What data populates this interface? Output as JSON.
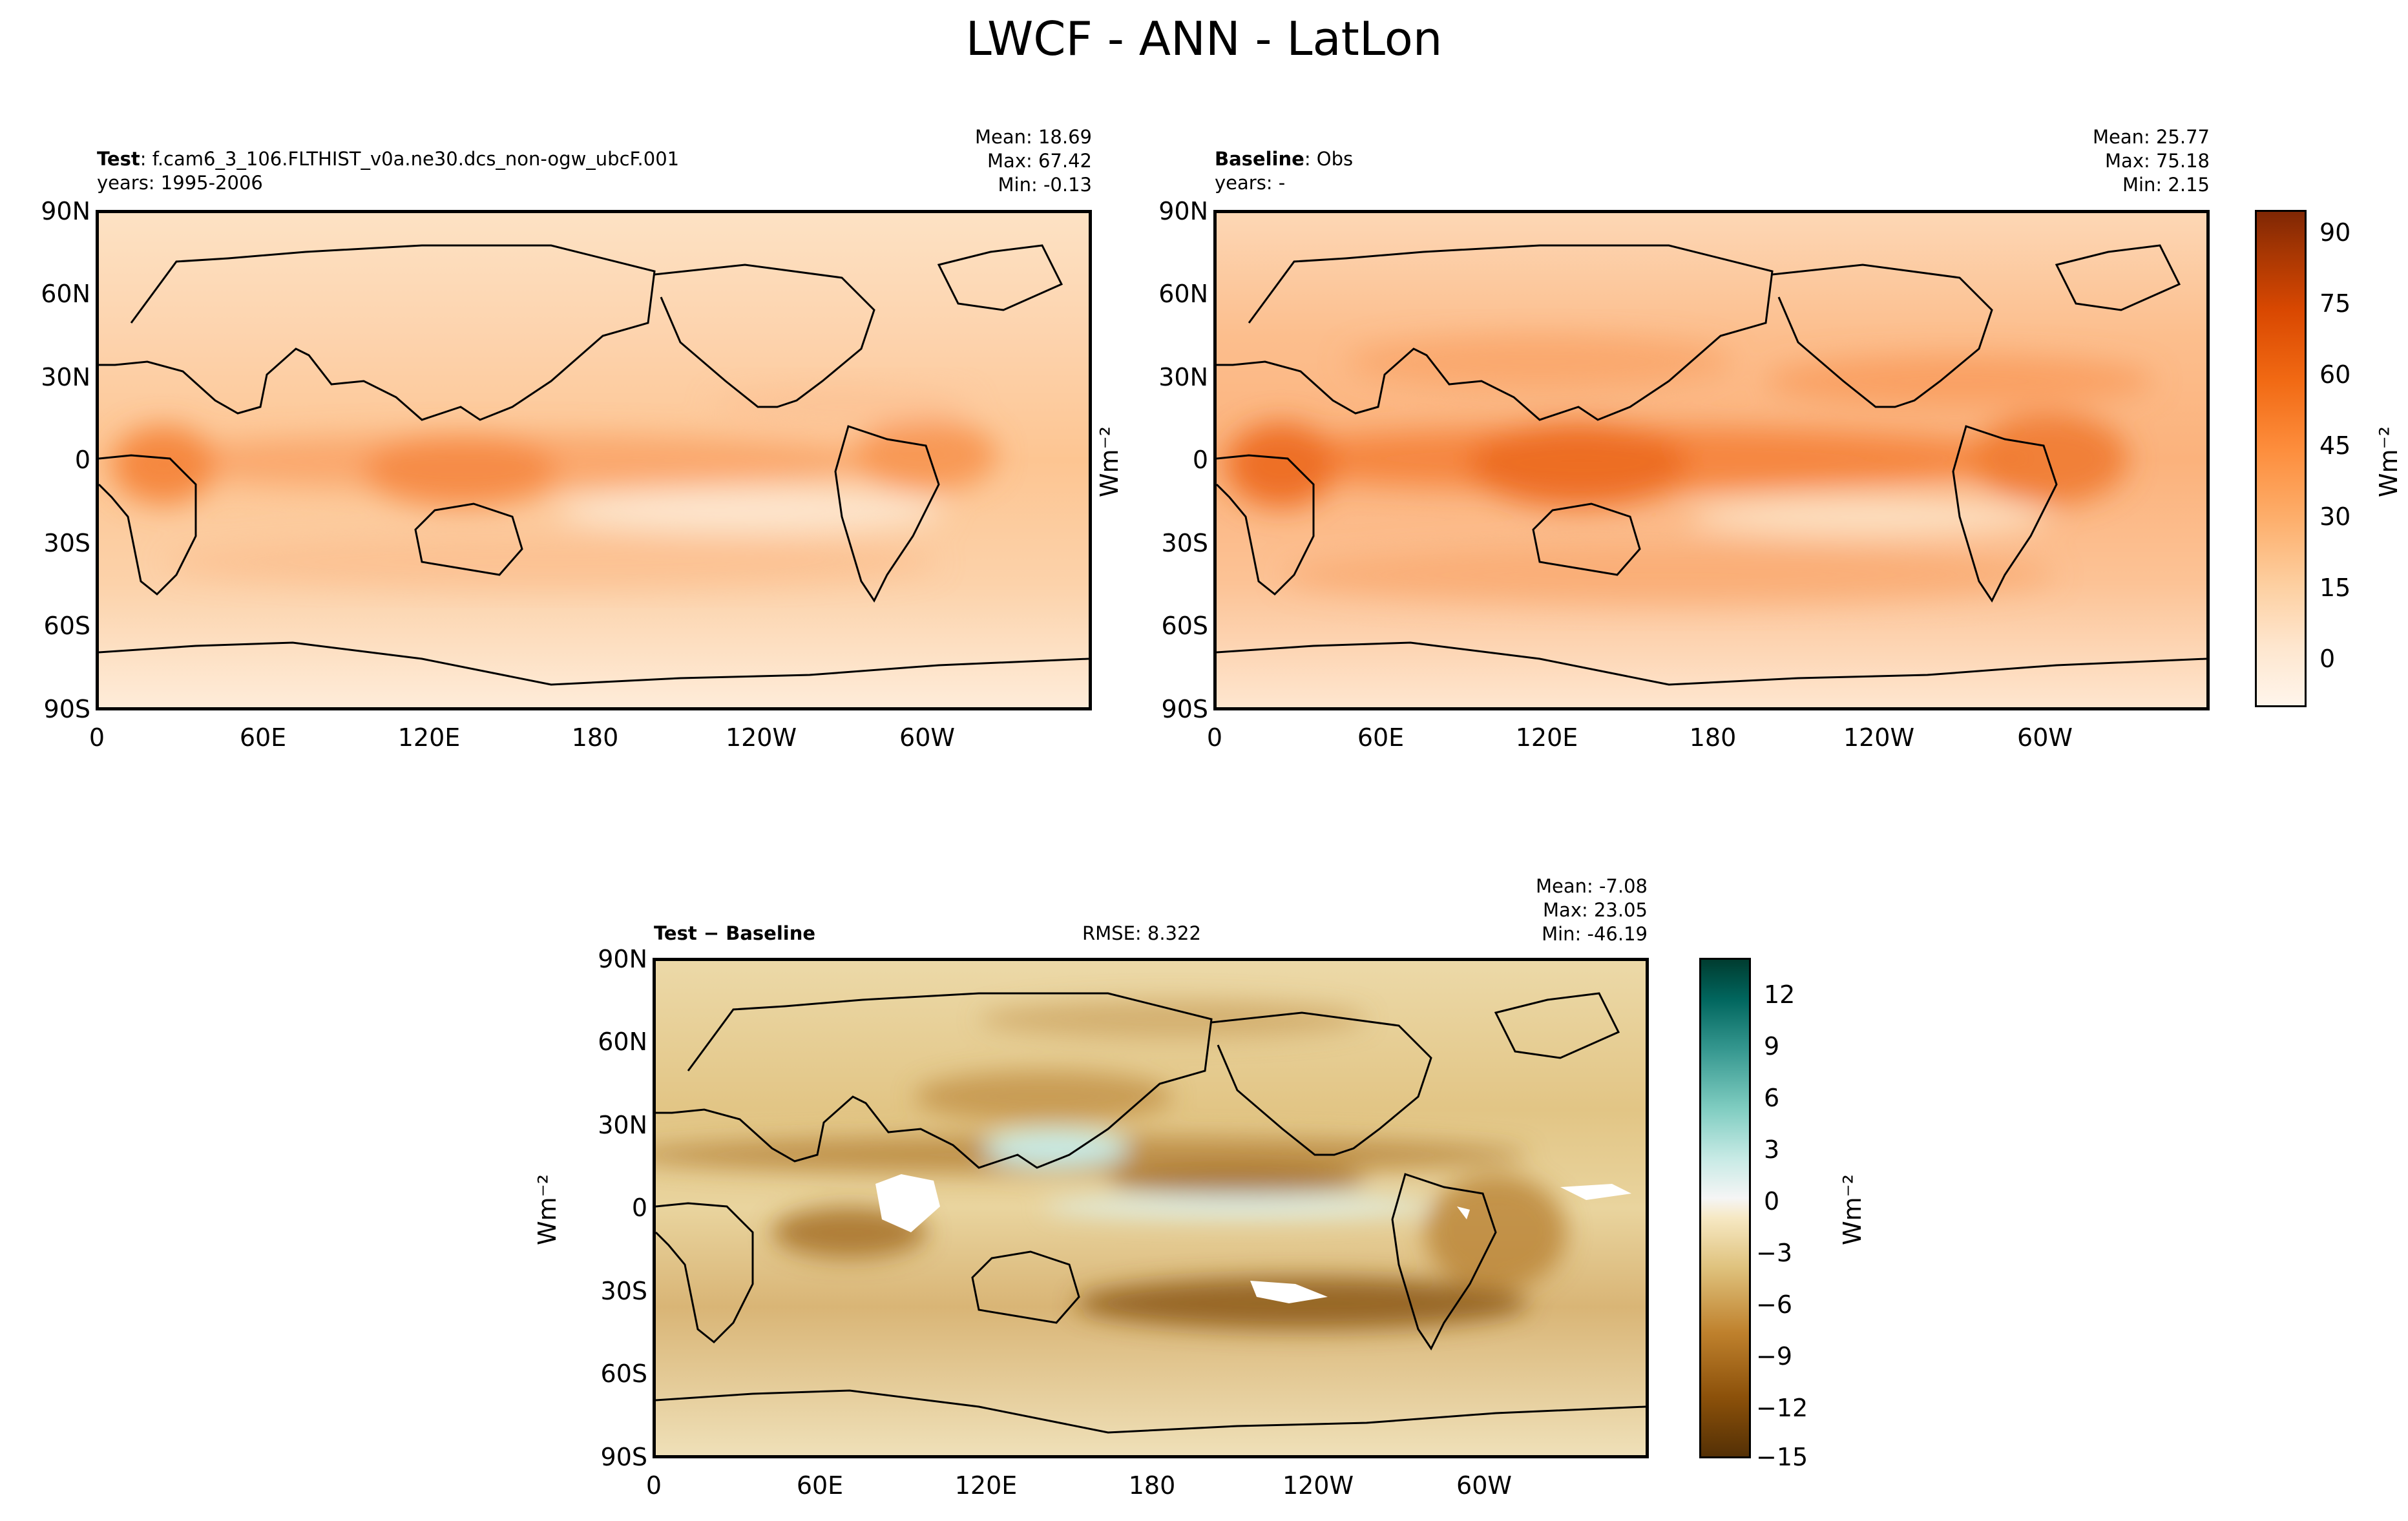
{
  "title": "LWCF - ANN - LatLon",
  "panels": {
    "test": {
      "label_bold": "Test",
      "label_rest": ": f.cam6_3_106.FLTHIST_v0a.ne30.dcs_non-ogw_ubcF.001",
      "years": "years: 1995-2006",
      "mean": "Mean: 18.69",
      "max": "Max: 67.42",
      "min": "Min: -0.13"
    },
    "baseline": {
      "label_bold": "Baseline",
      "label_rest": ": Obs",
      "years": "years: -",
      "mean": "Mean: 25.77",
      "max": "Max: 75.18",
      "min": "Min:  2.15"
    },
    "diff": {
      "label": "Test − Baseline",
      "rmse": "RMSE: 8.322",
      "mean": "Mean: -7.08",
      "max": "Max: 23.05",
      "min": "Min: -46.19"
    }
  },
  "axes": {
    "lat_ticks": [
      "90N",
      "60N",
      "30N",
      "0",
      "30S",
      "60S",
      "90S"
    ],
    "lon_ticks": [
      "0",
      "60E",
      "120E",
      "180",
      "120W",
      "60W"
    ],
    "units": "Wm⁻²"
  },
  "colorbars": {
    "top": {
      "ticks": [
        "90",
        "75",
        "60",
        "45",
        "30",
        "15",
        "0"
      ],
      "colors": [
        "#fff5eb",
        "#fee6ce",
        "#fdd0a2",
        "#fdae6b",
        "#fd8d3c",
        "#f16913",
        "#d94801",
        "#a63603",
        "#7f2704"
      ]
    },
    "diff": {
      "ticks": [
        "12",
        "9",
        "6",
        "3",
        "0",
        "−3",
        "−6",
        "−9",
        "−12",
        "−15"
      ],
      "colors": [
        "#543005",
        "#8c510a",
        "#bf812d",
        "#dfc27d",
        "#f6e8c3",
        "#f5f5f5",
        "#c7eae5",
        "#80cdc1",
        "#35978f",
        "#01665e",
        "#003c30"
      ]
    }
  },
  "chart_data": [
    {
      "type": "heatmap",
      "title": "Test",
      "x": [
        "0",
        "60E",
        "120E",
        "180",
        "120W",
        "60W"
      ],
      "y": [
        "90N",
        "60N",
        "30N",
        "0",
        "30S",
        "60S",
        "90S"
      ],
      "stats": {
        "mean": 18.69,
        "max": 67.42,
        "min": -0.13
      },
      "colorbar_range": [
        -10,
        95
      ]
    },
    {
      "type": "heatmap",
      "title": "Baseline",
      "x": [
        "0",
        "60E",
        "120E",
        "180",
        "120W",
        "60W"
      ],
      "y": [
        "90N",
        "60N",
        "30N",
        "0",
        "30S",
        "60S",
        "90S"
      ],
      "stats": {
        "mean": 25.77,
        "max": 75.18,
        "min": 2.15
      },
      "colorbar_range": [
        -10,
        95
      ]
    },
    {
      "type": "heatmap",
      "title": "Test − Baseline",
      "x": [
        "0",
        "60E",
        "120E",
        "180",
        "120W",
        "60W"
      ],
      "y": [
        "90N",
        "60N",
        "30N",
        "0",
        "30S",
        "60S",
        "90S"
      ],
      "stats": {
        "mean": -7.08,
        "max": 23.05,
        "min": -46.19,
        "rmse": 8.322
      },
      "colorbar_range": [
        -15,
        14
      ]
    }
  ]
}
